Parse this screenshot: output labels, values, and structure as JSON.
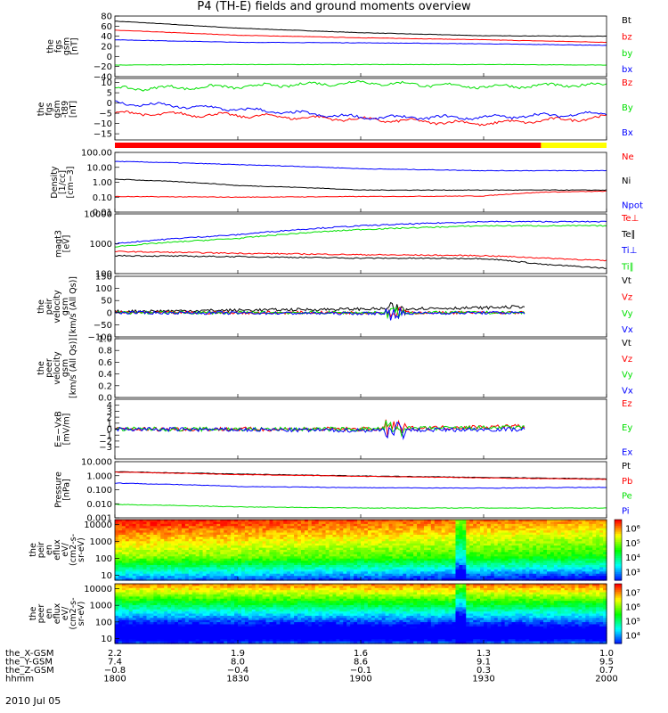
{
  "title": "P4 (TH-E) fields and ground moments overview",
  "date_label": "2010 Jul 05",
  "colors": {
    "black": "#000000",
    "red": "#ff0000",
    "green": "#00e000",
    "blue": "#0000ff",
    "yellow": "#ffff00"
  },
  "chart_data": [
    {
      "type": "line",
      "id": "fgs_gsm",
      "ylabel": [
        "the",
        "fgs",
        "gsm",
        "[nT]"
      ],
      "ylim": [
        -40,
        80
      ],
      "yticks": [
        "80",
        "60",
        "40",
        "20",
        "0",
        "−20",
        "−40"
      ],
      "ytick_values": [
        80,
        60,
        40,
        20,
        0,
        -20,
        -40
      ],
      "series": [
        {
          "name": "Bt",
          "color": "#000000",
          "points": [
            [
              1800,
              70
            ],
            [
              1830,
              56
            ],
            [
              1900,
              47
            ],
            [
              1930,
              41
            ],
            [
              2000,
              40
            ]
          ]
        },
        {
          "name": "bz",
          "color": "#ff0000",
          "points": [
            [
              1800,
              52
            ],
            [
              1830,
              42
            ],
            [
              1900,
              37
            ],
            [
              1930,
              33
            ],
            [
              2000,
              28
            ]
          ]
        },
        {
          "name": "by",
          "color": "#00e000",
          "points": [
            [
              1800,
              -17
            ],
            [
              1830,
              -16
            ],
            [
              1900,
              -16
            ],
            [
              1930,
              -16
            ],
            [
              2000,
              -17
            ]
          ]
        },
        {
          "name": "bx",
          "color": "#0000ff",
          "points": [
            [
              1800,
              33
            ],
            [
              1830,
              28
            ],
            [
              1900,
              27
            ],
            [
              1930,
              25
            ],
            [
              2000,
              22
            ]
          ]
        }
      ]
    },
    {
      "type": "line",
      "id": "fgs_gsm_t89",
      "ylabel": [
        "the",
        "fgs",
        "gsm",
        "-t89",
        "[nT]"
      ],
      "ylim": [
        -18,
        12
      ],
      "yticks": [
        "10",
        "5",
        "0",
        "−5",
        "−10",
        "−15"
      ],
      "ytick_values": [
        10,
        5,
        0,
        -5,
        -10,
        -15
      ],
      "series": [
        {
          "name": "Bz",
          "color": "#ff0000",
          "points": [
            [
              1800,
              -5
            ],
            [
              1830,
              -6
            ],
            [
              1900,
              -8
            ],
            [
              1930,
              -10
            ],
            [
              2000,
              -7
            ]
          ]
        },
        {
          "name": "By",
          "color": "#00e000",
          "points": [
            [
              1800,
              7
            ],
            [
              1830,
              8
            ],
            [
              1900,
              10
            ],
            [
              1930,
              8
            ],
            [
              2000,
              9
            ]
          ]
        },
        {
          "name": "Bx",
          "color": "#0000ff",
          "points": [
            [
              1800,
              0
            ],
            [
              1830,
              -3
            ],
            [
              1900,
              -7
            ],
            [
              1930,
              -7
            ],
            [
              2000,
              -5
            ]
          ]
        }
      ]
    },
    {
      "type": "line",
      "id": "density",
      "ylabel": [
        "Density",
        "[1/cc]",
        "[cm−3]"
      ],
      "scale": "log",
      "ylim": [
        0.01,
        100
      ],
      "yticks": [
        "100.00",
        "10.00",
        "1.00",
        "0.10",
        "0.01"
      ],
      "ytick_values": [
        100,
        10,
        1,
        0.1,
        0.01
      ],
      "series": [
        {
          "name": "Ne",
          "color": "#ff0000",
          "points": [
            [
              1800,
              0.11
            ],
            [
              1830,
              0.1
            ],
            [
              1900,
              0.11
            ],
            [
              1930,
              0.12
            ],
            [
              1945,
              0.22
            ],
            [
              2000,
              0.25
            ]
          ]
        },
        {
          "name": "Ni",
          "color": "#000000",
          "points": [
            [
              1800,
              1.6
            ],
            [
              1830,
              0.6
            ],
            [
              1900,
              0.3
            ],
            [
              1930,
              0.3
            ],
            [
              2000,
              0.3
            ]
          ]
        },
        {
          "name": "Npot",
          "color": "#0000ff",
          "points": [
            [
              1800,
              25
            ],
            [
              1830,
              15
            ],
            [
              1900,
              8
            ],
            [
              1930,
              6
            ],
            [
              2000,
              6
            ]
          ]
        }
      ]
    },
    {
      "type": "line",
      "id": "magt3",
      "ylabel": [
        "magt3",
        "[eV]"
      ],
      "scale": "log",
      "ylim": [
        100,
        10000
      ],
      "yticks": [
        "10000",
        "1000",
        "100"
      ],
      "ytick_values": [
        10000,
        1000,
        100
      ],
      "series": [
        {
          "name": "Te⊥",
          "color": "#ff0000",
          "points": [
            [
              1800,
              550
            ],
            [
              1830,
              480
            ],
            [
              1900,
              430
            ],
            [
              1930,
              400
            ],
            [
              1945,
              330
            ],
            [
              2000,
              270
            ]
          ]
        },
        {
          "name": "Te∥",
          "color": "#000000",
          "points": [
            [
              1800,
              400
            ],
            [
              1830,
              370
            ],
            [
              1900,
              330
            ],
            [
              1930,
              320
            ],
            [
              1945,
              200
            ],
            [
              2000,
              150
            ]
          ]
        },
        {
          "name": "Ti⊥",
          "color": "#0000ff",
          "points": [
            [
              1800,
              1000
            ],
            [
              1830,
              2000
            ],
            [
              1900,
              4000
            ],
            [
              1930,
              5500
            ],
            [
              2000,
              5500
            ]
          ]
        },
        {
          "name": "Ti∥",
          "color": "#00e000",
          "points": [
            [
              1800,
              800
            ],
            [
              1830,
              1500
            ],
            [
              1900,
              3000
            ],
            [
              1930,
              4000
            ],
            [
              2000,
              4000
            ]
          ]
        }
      ]
    },
    {
      "type": "line",
      "id": "peir_velocity",
      "ylabel": [
        "the",
        "peir",
        "velocity",
        "gsm",
        "[km/s (All Qs)]"
      ],
      "ylim": [
        -100,
        150
      ],
      "yticks": [
        "150",
        "100",
        "50",
        "0",
        "−50",
        "−100"
      ],
      "ytick_values": [
        150,
        100,
        50,
        0,
        -50,
        -100
      ],
      "series": [
        {
          "name": "Vt",
          "color": "#000000",
          "points": [
            [
              1800,
              5
            ],
            [
              1900,
              15
            ],
            [
              1930,
              20
            ],
            [
              1940,
              25
            ]
          ]
        },
        {
          "name": "Vz",
          "color": "#ff0000",
          "points": [
            [
              1800,
              0
            ],
            [
              1900,
              0
            ],
            [
              1940,
              0
            ]
          ]
        },
        {
          "name": "Vy",
          "color": "#00e000",
          "points": [
            [
              1800,
              0
            ],
            [
              1900,
              0
            ],
            [
              1940,
              0
            ]
          ]
        },
        {
          "name": "Vx",
          "color": "#0000ff",
          "points": [
            [
              1800,
              0
            ],
            [
              1900,
              -3
            ],
            [
              1940,
              0
            ]
          ]
        }
      ]
    },
    {
      "type": "line",
      "id": "peer_velocity",
      "ylabel": [
        "the",
        "peer",
        "velocity",
        "gsm",
        "[km/s (All Qs)]"
      ],
      "ylim": [
        0,
        1
      ],
      "yticks": [
        "1.0",
        "0.8",
        "0.6",
        "0.4",
        "0.2",
        "0.0"
      ],
      "ytick_values": [
        1,
        0.8,
        0.6,
        0.4,
        0.2,
        0
      ],
      "series": [
        {
          "name": "Vt",
          "color": "#000000",
          "points": []
        },
        {
          "name": "Vz",
          "color": "#ff0000",
          "points": []
        },
        {
          "name": "Vy",
          "color": "#00e000",
          "points": []
        },
        {
          "name": "Vx",
          "color": "#0000ff",
          "points": []
        }
      ]
    },
    {
      "type": "line",
      "id": "efield",
      "ylabel": [
        "E=−VxB",
        "[mV/m]"
      ],
      "ylim": [
        -5,
        5
      ],
      "yticks": [
        "4",
        "3",
        "2",
        "1",
        "0",
        "−1",
        "−2",
        "−3"
      ],
      "ytick_values": [
        4,
        3,
        2,
        1,
        0,
        -1,
        -2,
        -3
      ],
      "series": [
        {
          "name": "Ez",
          "color": "#ff0000",
          "points": [
            [
              1800,
              0
            ],
            [
              1900,
              0
            ],
            [
              1940,
              0.5
            ]
          ]
        },
        {
          "name": "Ey",
          "color": "#00e000",
          "points": [
            [
              1800,
              0
            ],
            [
              1900,
              0
            ],
            [
              1940,
              0.3
            ]
          ]
        },
        {
          "name": "Ex",
          "color": "#0000ff",
          "points": [
            [
              1800,
              0
            ],
            [
              1900,
              -0.2
            ],
            [
              1940,
              0
            ]
          ]
        }
      ]
    },
    {
      "type": "line",
      "id": "pressure",
      "ylabel": [
        "Pressure",
        "[nPa]"
      ],
      "scale": "log",
      "ylim": [
        0.001,
        10
      ],
      "yticks": [
        "10.000",
        "1.000",
        "0.100",
        "0.010",
        "0.001"
      ],
      "ytick_values": [
        10,
        1,
        0.1,
        0.01,
        0.001
      ],
      "series": [
        {
          "name": "Pt",
          "color": "#000000",
          "points": [
            [
              1800,
              1.9
            ],
            [
              1830,
              1.3
            ],
            [
              1900,
              0.95
            ],
            [
              1930,
              0.75
            ],
            [
              2000,
              0.6
            ]
          ]
        },
        {
          "name": "Pb",
          "color": "#ff0000",
          "points": [
            [
              1800,
              1.8
            ],
            [
              1830,
              1.2
            ],
            [
              1900,
              0.9
            ],
            [
              1930,
              0.7
            ],
            [
              2000,
              0.55
            ]
          ]
        },
        {
          "name": "Pe",
          "color": "#00e000",
          "points": [
            [
              1800,
              0.009
            ],
            [
              1830,
              0.006
            ],
            [
              1900,
              0.005
            ],
            [
              1930,
              0.005
            ],
            [
              2000,
              0.005
            ]
          ]
        },
        {
          "name": "Pi",
          "color": "#0000ff",
          "points": [
            [
              1800,
              0.3
            ],
            [
              1830,
              0.17
            ],
            [
              1900,
              0.14
            ],
            [
              1930,
              0.13
            ],
            [
              2000,
              0.15
            ]
          ]
        }
      ]
    },
    {
      "type": "heatmap",
      "id": "peir_en_eflux",
      "ylabel": [
        "the",
        "peir",
        "en",
        "eflux",
        "eV/",
        "(cm2-s-",
        "sr-eV)"
      ],
      "scale": "log",
      "ylim": [
        5,
        20000
      ],
      "yticks": [
        "10000",
        "1000",
        "100",
        "10"
      ],
      "ytick_values": [
        10000,
        1000,
        100,
        10
      ],
      "colorbar": {
        "ticks": [
          "10⁶",
          "10⁵",
          "10⁴",
          "10³"
        ],
        "tick_exponents": [
          6,
          5,
          4,
          3
        ]
      }
    },
    {
      "type": "heatmap",
      "id": "peer_en_eflux",
      "ylabel": [
        "the",
        "peer",
        "en",
        "eflux",
        "eV/",
        "(cm2-s-",
        "sr-eV)"
      ],
      "scale": "log",
      "ylim": [
        5,
        20000
      ],
      "yticks": [
        "10000",
        "1000",
        "100",
        "10"
      ],
      "ytick_values": [
        10000,
        1000,
        100,
        10
      ],
      "colorbar": {
        "ticks": [
          "10⁷",
          "10⁶",
          "10⁵",
          "10⁴"
        ],
        "tick_exponents": [
          7,
          6,
          5,
          4
        ]
      }
    }
  ],
  "mode_bar": [
    {
      "from": 1800,
      "to": 1944,
      "color": "#ff0000"
    },
    {
      "from": 1944,
      "to": 2000,
      "color": "#ffff00"
    }
  ],
  "x_axis": {
    "hhmm": [
      "1800",
      "1830",
      "1900",
      "1930",
      "2000"
    ],
    "x_values": [
      1800,
      1830,
      1900,
      1930,
      2000
    ],
    "rows": [
      {
        "label": "the_X-GSM",
        "values": [
          "2.2",
          "1.9",
          "1.6",
          "1.3",
          "1.0"
        ]
      },
      {
        "label": "the_Y-GSM",
        "values": [
          "7.4",
          "8.0",
          "8.6",
          "9.1",
          "9.5"
        ]
      },
      {
        "label": "the_Z-GSM",
        "values": [
          "−0.8",
          "−0.4",
          "−0.1",
          "0.3",
          "0.7"
        ]
      },
      {
        "label": "hhmm",
        "values": [
          "1800",
          "1830",
          "1900",
          "1930",
          "2000"
        ]
      }
    ]
  }
}
